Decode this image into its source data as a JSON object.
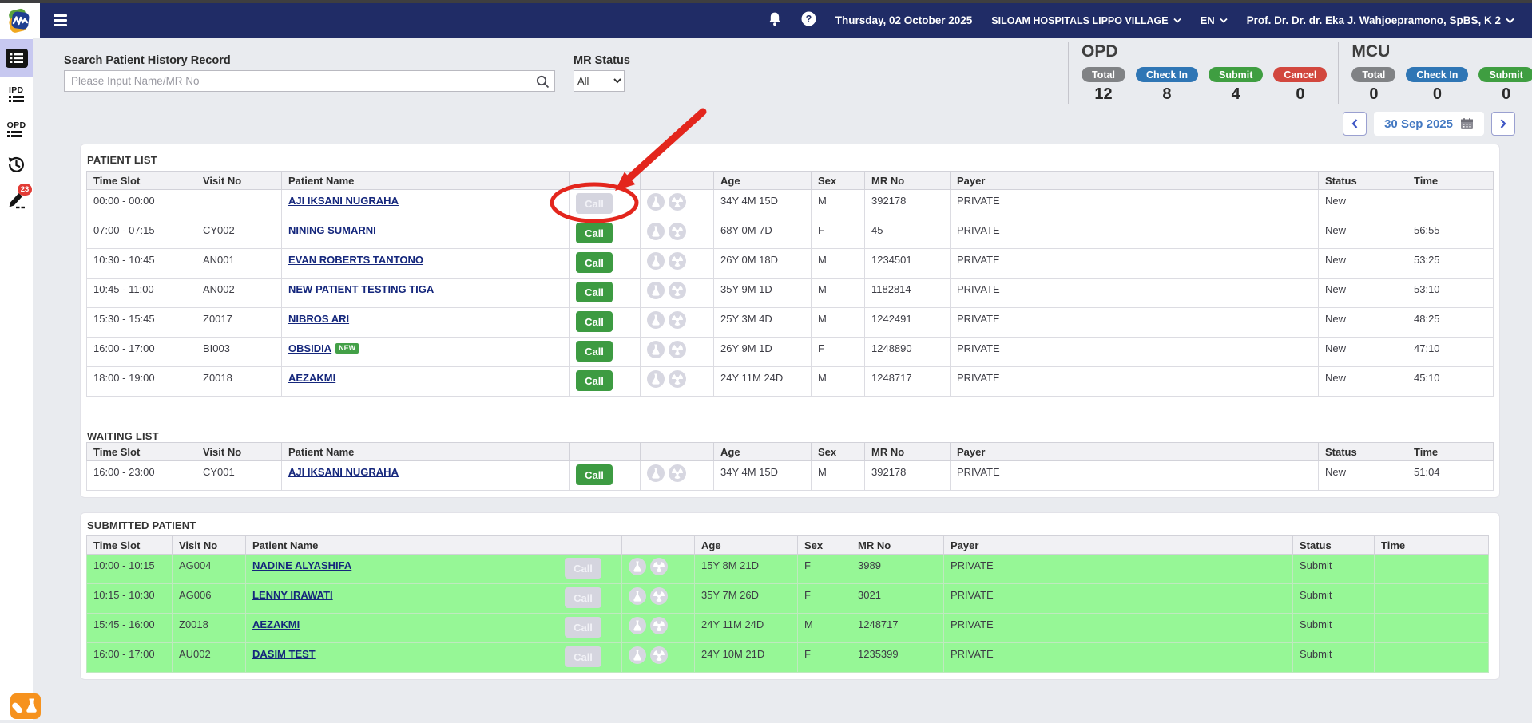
{
  "header": {
    "date": "Thursday, 02 October 2025",
    "hospital": "SILOAM HOSPITALS LIPPO VILLAGE",
    "language": "EN",
    "user": "Prof. Dr. Dr. dr. Eka J. Wahjoepramono, SpBS, K 2"
  },
  "sidebar": {
    "items": [
      {
        "id": "patient-list",
        "active": true
      },
      {
        "id": "ipd",
        "label": "IPD"
      },
      {
        "id": "opd",
        "label": "OPD"
      },
      {
        "id": "history"
      },
      {
        "id": "signed-documents",
        "badge": "23"
      }
    ]
  },
  "search": {
    "label": "Search Patient History Record",
    "placeholder": "Please Input Name/MR No",
    "mr_status_label": "MR Status",
    "mr_status_value": "All"
  },
  "stats": {
    "opd": {
      "title": "OPD",
      "items": [
        {
          "label": "Total",
          "value": "12",
          "color": "#808285"
        },
        {
          "label": "Check In",
          "value": "8",
          "color": "#2f76b5"
        },
        {
          "label": "Submit",
          "value": "4",
          "color": "#3f9e41"
        },
        {
          "label": "Cancel",
          "value": "0",
          "color": "#d2473e"
        }
      ]
    },
    "mcu": {
      "title": "MCU",
      "items": [
        {
          "label": "Total",
          "value": "0",
          "color": "#808285"
        },
        {
          "label": "Check In",
          "value": "0",
          "color": "#2f76b5"
        },
        {
          "label": "Submit",
          "value": "0",
          "color": "#3f9e41"
        }
      ]
    }
  },
  "datenav": {
    "date": "30 Sep 2025"
  },
  "table_columns": [
    "Time Slot",
    "Visit No",
    "Patient Name",
    "",
    "",
    "Age",
    "Sex",
    "MR No",
    "Payer",
    "Status",
    "Time"
  ],
  "labels": {
    "call": "Call",
    "new_badge": "NEW"
  },
  "patient_list": {
    "title": "PATIENT LIST",
    "rows": [
      {
        "time_slot": "00:00 - 00:00",
        "visit_no": "",
        "name": "AJI IKSANI NUGRAHA",
        "call": false,
        "age": "34Y 4M 15D",
        "sex": "M",
        "mr_no": "392178",
        "payer": "PRIVATE",
        "status": "New",
        "time": ""
      },
      {
        "time_slot": "07:00 - 07:15",
        "visit_no": "CY002",
        "name": "NINING SUMARNI",
        "call": true,
        "age": "68Y 0M 7D",
        "sex": "F",
        "mr_no": "45",
        "payer": "PRIVATE",
        "status": "New",
        "time": "56:55"
      },
      {
        "time_slot": "10:30 - 10:45",
        "visit_no": "AN001",
        "name": "EVAN ROBERTS TANTONO",
        "call": true,
        "age": "26Y 0M 18D",
        "sex": "M",
        "mr_no": "1234501",
        "payer": "PRIVATE",
        "status": "New",
        "time": "53:25"
      },
      {
        "time_slot": "10:45 - 11:00",
        "visit_no": "AN002",
        "name": "NEW PATIENT TESTING TIGA",
        "call": true,
        "age": "35Y 9M 1D",
        "sex": "M",
        "mr_no": "1182814",
        "payer": "PRIVATE",
        "status": "New",
        "time": "53:10"
      },
      {
        "time_slot": "15:30 - 15:45",
        "visit_no": "Z0017",
        "name": "NIBROS ARI",
        "call": true,
        "age": "25Y 3M 4D",
        "sex": "M",
        "mr_no": "1242491",
        "payer": "PRIVATE",
        "status": "New",
        "time": "48:25"
      },
      {
        "time_slot": "16:00 - 17:00",
        "visit_no": "BI003",
        "name": "OBSIDIA",
        "new": true,
        "call": true,
        "age": "26Y 9M 1D",
        "sex": "F",
        "mr_no": "1248890",
        "payer": "PRIVATE",
        "status": "New",
        "time": "47:10"
      },
      {
        "time_slot": "18:00 - 19:00",
        "visit_no": "Z0018",
        "name": "AEZAKMI",
        "call": true,
        "age": "24Y 11M 24D",
        "sex": "M",
        "mr_no": "1248717",
        "payer": "PRIVATE",
        "status": "New",
        "time": "45:10"
      }
    ]
  },
  "waiting_list": {
    "title": "WAITING LIST",
    "rows": [
      {
        "time_slot": "16:00 - 23:00",
        "visit_no": "CY001",
        "name": "AJI IKSANI NUGRAHA",
        "call": true,
        "age": "34Y 4M 15D",
        "sex": "M",
        "mr_no": "392178",
        "payer": "PRIVATE",
        "status": "New",
        "time": "51:04"
      }
    ]
  },
  "submitted": {
    "title": "SUBMITTED PATIENT",
    "rows": [
      {
        "time_slot": "10:00 - 10:15",
        "visit_no": "AG004",
        "name": "NADINE ALYASHIFA",
        "call": false,
        "age": "15Y 8M 21D",
        "sex": "F",
        "mr_no": "3989",
        "payer": "PRIVATE",
        "status": "Submit",
        "time": ""
      },
      {
        "time_slot": "10:15 - 10:30",
        "visit_no": "AG006",
        "name": "LENNY IRAWATI",
        "call": false,
        "age": "35Y 7M 26D",
        "sex": "F",
        "mr_no": "3021",
        "payer": "PRIVATE",
        "status": "Submit",
        "time": ""
      },
      {
        "time_slot": "15:45 - 16:00",
        "visit_no": "Z0018",
        "name": "AEZAKMI",
        "call": false,
        "age": "24Y 11M 24D",
        "sex": "M",
        "mr_no": "1248717",
        "payer": "PRIVATE",
        "status": "Submit",
        "time": ""
      },
      {
        "time_slot": "16:00 - 17:00",
        "visit_no": "AU002",
        "name": "DASIM TEST",
        "call": false,
        "age": "24Y 10M 21D",
        "sex": "F",
        "mr_no": "1235399",
        "payer": "PRIVATE",
        "status": "Submit",
        "time": ""
      }
    ]
  },
  "annotation": {
    "type": "red-ellipse-with-arrow",
    "target": "disabled Call button of first patient list row",
    "color": "#e3261d"
  }
}
